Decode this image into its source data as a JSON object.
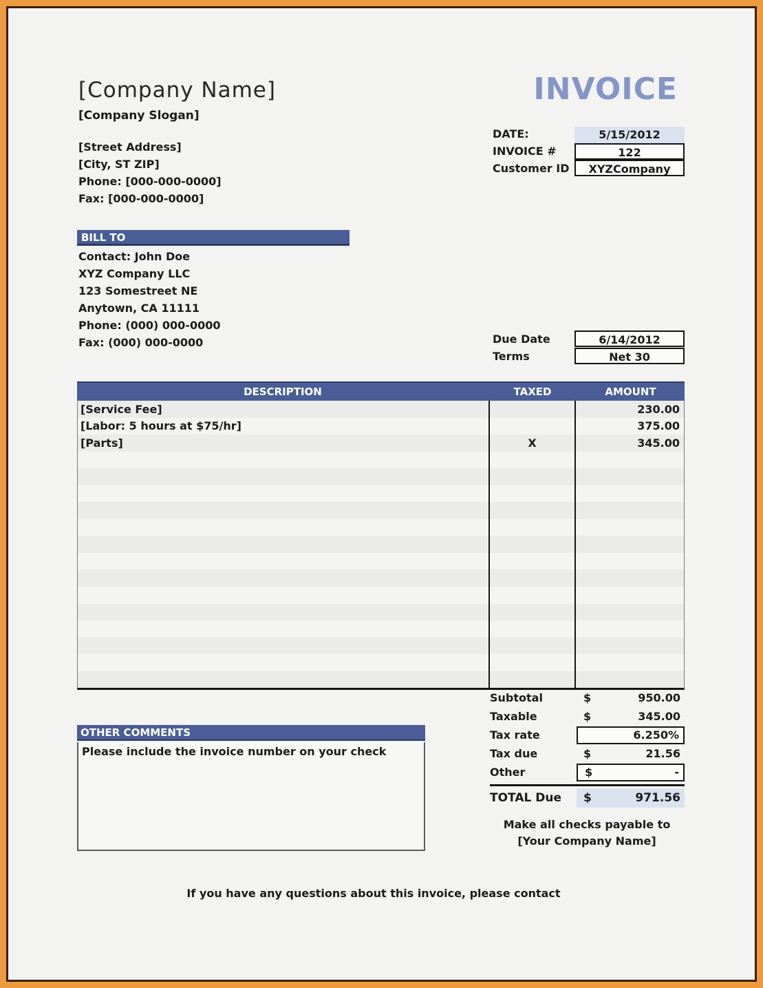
{
  "title": "INVOICE",
  "company": {
    "name": "[Company Name]",
    "slogan": "[Company Slogan]",
    "street": "[Street Address]",
    "city": "[City, ST ZIP]",
    "phone": "Phone: [000-000-0000]",
    "fax": "Fax: [000-000-0000]"
  },
  "meta": {
    "date_label": "DATE:",
    "date_value": "5/15/2012",
    "invoice_no_label": "INVOICE #",
    "invoice_no_value": "122",
    "customer_id_label": "Customer ID",
    "customer_id_value": "XYZCompany"
  },
  "bill_to": {
    "header": "BILL TO",
    "lines": [
      "Contact: John Doe",
      "XYZ Company LLC",
      "123 Somestreet NE",
      "Anytown,  CA 11111",
      "Phone: (000) 000-0000",
      "Fax: (000) 000-0000"
    ]
  },
  "due": {
    "due_date_label": "Due Date",
    "due_date_value": "6/14/2012",
    "terms_label": "Terms",
    "terms_value": "Net 30"
  },
  "table": {
    "headers": {
      "description": "DESCRIPTION",
      "taxed": "TAXED",
      "amount": "AMOUNT"
    },
    "rows": [
      {
        "description": "[Service Fee]",
        "taxed": "",
        "amount": "230.00"
      },
      {
        "description": "[Labor: 5 hours at $75/hr]",
        "taxed": "",
        "amount": "375.00"
      },
      {
        "description": "[Parts]",
        "taxed": "X",
        "amount": "345.00"
      }
    ],
    "empty_row_count": 14
  },
  "totals": {
    "rows": [
      {
        "label": "Subtotal",
        "currency": "$",
        "value": "950.00"
      },
      {
        "label": "Taxable",
        "currency": "$",
        "value": "345.00"
      },
      {
        "label": "Tax rate",
        "currency": "",
        "value": "6.250%"
      },
      {
        "label": "Tax due",
        "currency": "$",
        "value": "21.56"
      },
      {
        "label": "Other",
        "currency": "$",
        "value": "-"
      }
    ],
    "total_label": "TOTAL Due",
    "total_currency": "$",
    "total_value": "971.56"
  },
  "comments": {
    "header": "OTHER COMMENTS",
    "line1": "Please include the invoice number on your check"
  },
  "checks": {
    "line1": "Make all checks payable to",
    "line2": "[Your Company Name]"
  },
  "footer": "If you have any questions about this invoice, please contact",
  "colors": {
    "accent_blue": "#4a5d96",
    "title_blue": "#8495c6",
    "highlight_blue": "#dbe2ef",
    "frame_orange": "#ec9b3e",
    "frame_brown": "#401c0b"
  }
}
